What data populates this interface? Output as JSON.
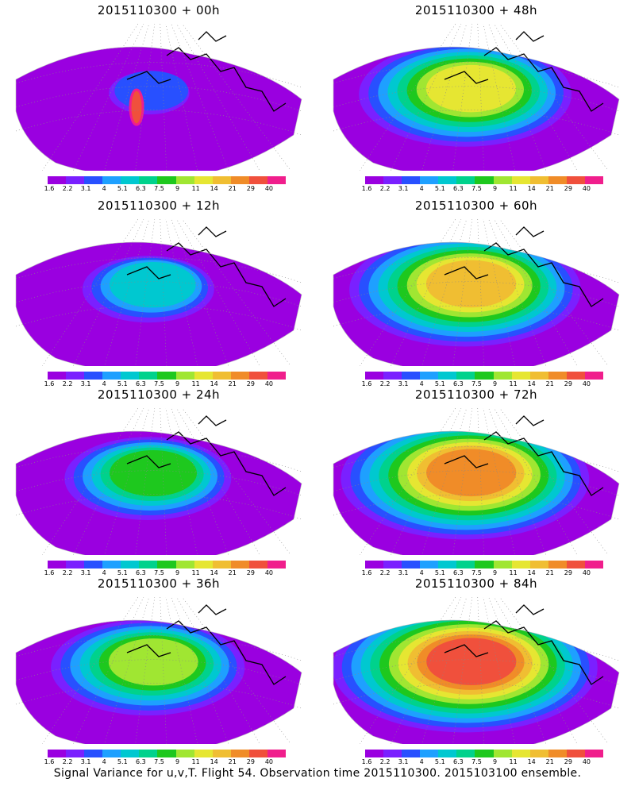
{
  "panels": [
    {
      "title": "2015110300 + 00h",
      "intensity": 0.1,
      "hotspot": true
    },
    {
      "title": "2015110300 + 48h",
      "intensity": 0.7,
      "hotspot": false
    },
    {
      "title": "2015110300 + 12h",
      "intensity": 0.35,
      "hotspot": false
    },
    {
      "title": "2015110300 + 60h",
      "intensity": 0.78,
      "hotspot": false
    },
    {
      "title": "2015110300 + 24h",
      "intensity": 0.5,
      "hotspot": false
    },
    {
      "title": "2015110300 + 72h",
      "intensity": 0.85,
      "hotspot": false
    },
    {
      "title": "2015110300 + 36h",
      "intensity": 0.62,
      "hotspot": false
    },
    {
      "title": "2015110300 + 84h",
      "intensity": 0.92,
      "hotspot": false
    }
  ],
  "colorbar": {
    "labels": [
      "1.6",
      "2.2",
      "3.1",
      "4",
      "5.1",
      "6.3",
      "7.5",
      "9",
      "11",
      "14",
      "21",
      "29",
      "40"
    ],
    "colors": [
      "#9a00e0",
      "#7a20ff",
      "#2850ff",
      "#1ea0ff",
      "#00c8d0",
      "#00d28c",
      "#1ec81e",
      "#a0e632",
      "#e6e632",
      "#f0be32",
      "#f08c28",
      "#f0503c",
      "#f01e8c"
    ]
  },
  "footer": "Signal Variance for u,v,T. Flight 54. Observation time 2015110300. 2015103100 ensemble."
}
